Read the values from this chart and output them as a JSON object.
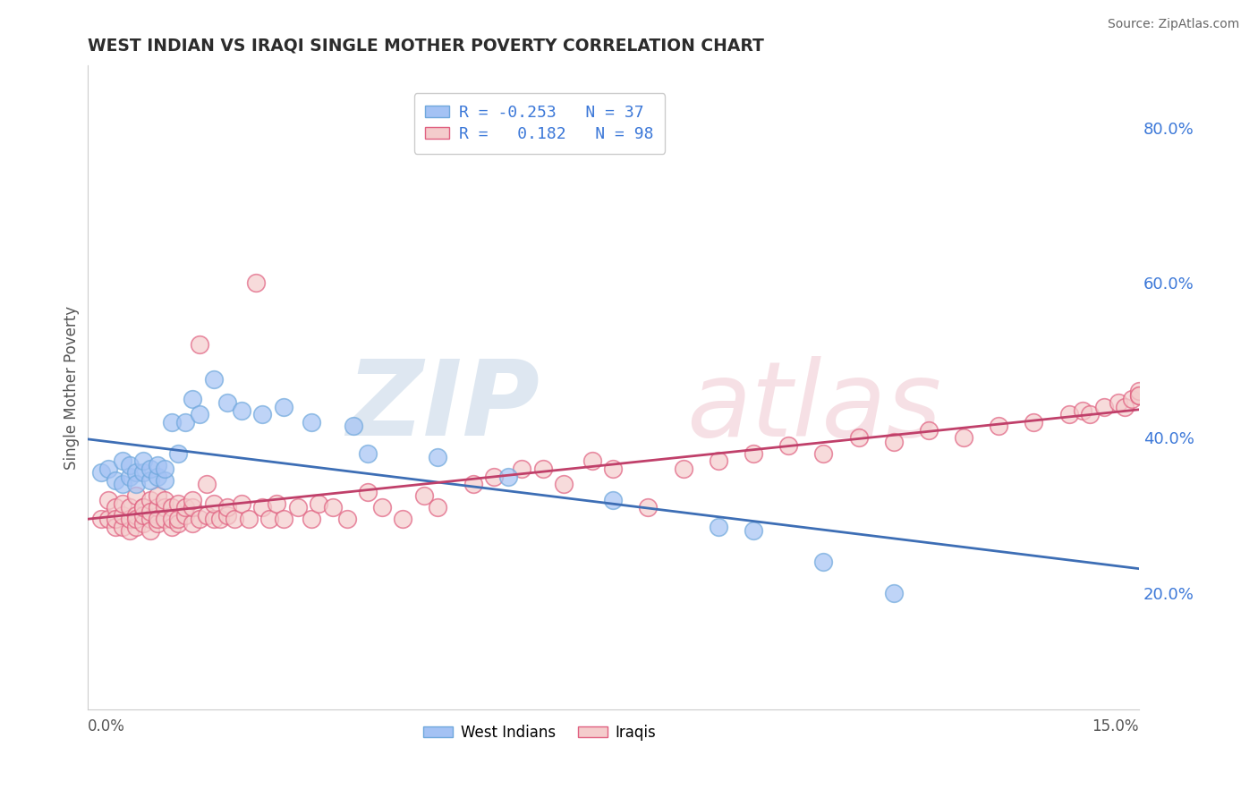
{
  "title": "WEST INDIAN VS IRAQI SINGLE MOTHER POVERTY CORRELATION CHART",
  "source": "Source: ZipAtlas.com",
  "ylabel": "Single Mother Poverty",
  "xlim": [
    0.0,
    0.15
  ],
  "ylim": [
    0.05,
    0.88
  ],
  "right_yticks": [
    0.2,
    0.4,
    0.6,
    0.8
  ],
  "right_ytick_labels": [
    "20.0%",
    "40.0%",
    "60.0%",
    "80.0%"
  ],
  "blue_scatter_color": "#a4c2f4",
  "blue_edge_color": "#6fa8dc",
  "pink_scatter_color": "#f4cccc",
  "pink_edge_color": "#e06080",
  "blue_line_color": "#3d6eb5",
  "pink_line_color": "#c0406a",
  "legend_text_color": "#3c78d8",
  "west_indians_label": "West Indians",
  "iraqis_label": "Iraqis",
  "legend_r1": "R = -0.253",
  "legend_n1": "N = 37",
  "legend_r2": "R =  0.182",
  "legend_n2": "N = 98",
  "bx": [
    0.002,
    0.003,
    0.004,
    0.005,
    0.005,
    0.006,
    0.006,
    0.007,
    0.007,
    0.008,
    0.008,
    0.009,
    0.009,
    0.01,
    0.01,
    0.011,
    0.011,
    0.012,
    0.013,
    0.014,
    0.015,
    0.016,
    0.018,
    0.02,
    0.022,
    0.025,
    0.028,
    0.032,
    0.038,
    0.04,
    0.05,
    0.06,
    0.075,
    0.09,
    0.095,
    0.105,
    0.115
  ],
  "by": [
    0.355,
    0.36,
    0.345,
    0.34,
    0.37,
    0.35,
    0.365,
    0.355,
    0.34,
    0.355,
    0.37,
    0.345,
    0.36,
    0.35,
    0.365,
    0.345,
    0.36,
    0.42,
    0.38,
    0.42,
    0.45,
    0.43,
    0.475,
    0.445,
    0.435,
    0.43,
    0.44,
    0.42,
    0.415,
    0.38,
    0.375,
    0.35,
    0.32,
    0.285,
    0.28,
    0.24,
    0.2
  ],
  "px": [
    0.002,
    0.003,
    0.003,
    0.004,
    0.004,
    0.004,
    0.005,
    0.005,
    0.005,
    0.006,
    0.006,
    0.006,
    0.007,
    0.007,
    0.007,
    0.007,
    0.008,
    0.008,
    0.008,
    0.008,
    0.009,
    0.009,
    0.009,
    0.009,
    0.01,
    0.01,
    0.01,
    0.01,
    0.011,
    0.011,
    0.011,
    0.012,
    0.012,
    0.012,
    0.013,
    0.013,
    0.013,
    0.014,
    0.014,
    0.015,
    0.015,
    0.015,
    0.016,
    0.016,
    0.017,
    0.017,
    0.018,
    0.018,
    0.019,
    0.02,
    0.02,
    0.021,
    0.022,
    0.023,
    0.024,
    0.025,
    0.026,
    0.027,
    0.028,
    0.03,
    0.032,
    0.033,
    0.035,
    0.037,
    0.04,
    0.042,
    0.045,
    0.048,
    0.05,
    0.055,
    0.058,
    0.062,
    0.065,
    0.068,
    0.072,
    0.075,
    0.08,
    0.085,
    0.09,
    0.095,
    0.1,
    0.105,
    0.11,
    0.115,
    0.12,
    0.125,
    0.13,
    0.135,
    0.14,
    0.142,
    0.143,
    0.145,
    0.147,
    0.148,
    0.149,
    0.15,
    0.15,
    0.15
  ],
  "py": [
    0.295,
    0.32,
    0.295,
    0.285,
    0.31,
    0.295,
    0.285,
    0.3,
    0.315,
    0.28,
    0.295,
    0.31,
    0.285,
    0.3,
    0.325,
    0.295,
    0.29,
    0.31,
    0.3,
    0.31,
    0.295,
    0.32,
    0.28,
    0.305,
    0.29,
    0.31,
    0.295,
    0.325,
    0.31,
    0.295,
    0.32,
    0.285,
    0.31,
    0.295,
    0.29,
    0.315,
    0.295,
    0.3,
    0.31,
    0.29,
    0.31,
    0.32,
    0.295,
    0.52,
    0.3,
    0.34,
    0.295,
    0.315,
    0.295,
    0.3,
    0.31,
    0.295,
    0.315,
    0.295,
    0.6,
    0.31,
    0.295,
    0.315,
    0.295,
    0.31,
    0.295,
    0.315,
    0.31,
    0.295,
    0.33,
    0.31,
    0.295,
    0.325,
    0.31,
    0.34,
    0.35,
    0.36,
    0.36,
    0.34,
    0.37,
    0.36,
    0.31,
    0.36,
    0.37,
    0.38,
    0.39,
    0.38,
    0.4,
    0.395,
    0.41,
    0.4,
    0.415,
    0.42,
    0.43,
    0.435,
    0.43,
    0.44,
    0.445,
    0.44,
    0.45,
    0.455,
    0.46,
    0.455
  ]
}
